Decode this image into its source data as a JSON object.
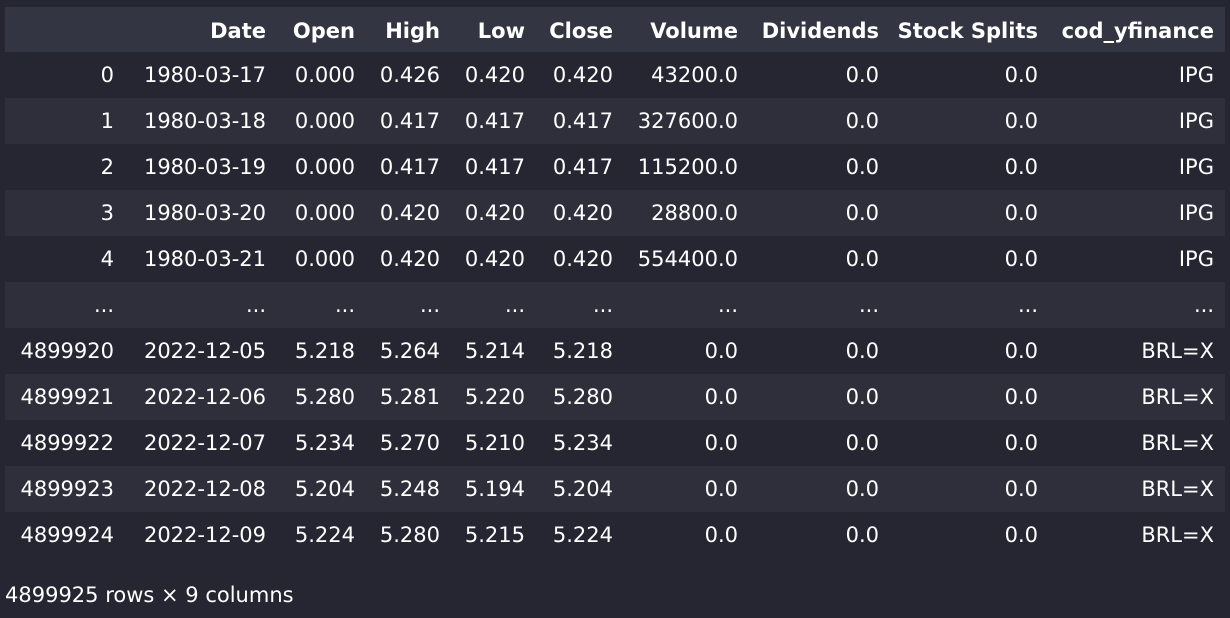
{
  "table": {
    "index_header": "",
    "columns": [
      "Date",
      "Open",
      "High",
      "Low",
      "Close",
      "Volume",
      "Dividends",
      "Stock Splits",
      "cod_yfinance"
    ],
    "rows": [
      {
        "index": "0",
        "cells": [
          "1980-03-17",
          "0.000",
          "0.426",
          "0.420",
          "0.420",
          "43200.0",
          "0.0",
          "0.0",
          "IPG"
        ]
      },
      {
        "index": "1",
        "cells": [
          "1980-03-18",
          "0.000",
          "0.417",
          "0.417",
          "0.417",
          "327600.0",
          "0.0",
          "0.0",
          "IPG"
        ]
      },
      {
        "index": "2",
        "cells": [
          "1980-03-19",
          "0.000",
          "0.417",
          "0.417",
          "0.417",
          "115200.0",
          "0.0",
          "0.0",
          "IPG"
        ]
      },
      {
        "index": "3",
        "cells": [
          "1980-03-20",
          "0.000",
          "0.420",
          "0.420",
          "0.420",
          "28800.0",
          "0.0",
          "0.0",
          "IPG"
        ]
      },
      {
        "index": "4",
        "cells": [
          "1980-03-21",
          "0.000",
          "0.420",
          "0.420",
          "0.420",
          "554400.0",
          "0.0",
          "0.0",
          "IPG"
        ]
      },
      {
        "index": "...",
        "cells": [
          "...",
          "...",
          "...",
          "...",
          "...",
          "...",
          "...",
          "...",
          "..."
        ]
      },
      {
        "index": "4899920",
        "cells": [
          "2022-12-05",
          "5.218",
          "5.264",
          "5.214",
          "5.218",
          "0.0",
          "0.0",
          "0.0",
          "BRL=X"
        ]
      },
      {
        "index": "4899921",
        "cells": [
          "2022-12-06",
          "5.280",
          "5.281",
          "5.220",
          "5.280",
          "0.0",
          "0.0",
          "0.0",
          "BRL=X"
        ]
      },
      {
        "index": "4899922",
        "cells": [
          "2022-12-07",
          "5.234",
          "5.270",
          "5.210",
          "5.234",
          "0.0",
          "0.0",
          "0.0",
          "BRL=X"
        ]
      },
      {
        "index": "4899923",
        "cells": [
          "2022-12-08",
          "5.204",
          "5.248",
          "5.194",
          "5.204",
          "0.0",
          "0.0",
          "0.0",
          "BRL=X"
        ]
      },
      {
        "index": "4899924",
        "cells": [
          "2022-12-09",
          "5.224",
          "5.280",
          "5.215",
          "5.224",
          "0.0",
          "0.0",
          "0.0",
          "BRL=X"
        ]
      }
    ]
  },
  "shape_text": "4899925 rows × 9 columns",
  "colors": {
    "background": "#252632",
    "header_background": "#343542",
    "row_stripe": "#2e2f3b",
    "text": "#ffffff"
  }
}
